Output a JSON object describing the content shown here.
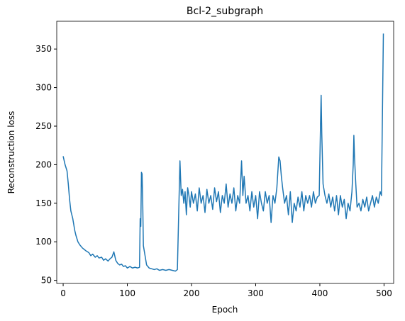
{
  "chart_data": {
    "type": "line",
    "title": "Bcl-2_subgraph",
    "xlabel": "Epoch",
    "ylabel": "Reconstruction loss",
    "x": [
      0,
      3,
      6,
      8,
      10,
      12,
      15,
      18,
      20,
      23,
      26,
      30,
      33,
      36,
      40,
      43,
      46,
      50,
      53,
      56,
      60,
      63,
      66,
      70,
      73,
      76,
      79,
      82,
      85,
      88,
      91,
      94,
      97,
      100,
      104,
      108,
      112,
      116,
      119,
      120,
      121,
      122,
      123,
      124,
      125,
      127,
      130,
      134,
      138,
      142,
      146,
      150,
      155,
      160,
      165,
      170,
      175,
      178,
      180,
      182,
      184,
      186,
      188,
      190,
      192,
      194,
      196,
      198,
      200,
      203,
      206,
      209,
      212,
      215,
      218,
      221,
      224,
      227,
      230,
      233,
      236,
      239,
      242,
      245,
      248,
      251,
      254,
      257,
      260,
      263,
      266,
      269,
      272,
      275,
      278,
      280,
      282,
      285,
      288,
      291,
      294,
      297,
      300,
      303,
      306,
      309,
      312,
      315,
      318,
      321,
      324,
      327,
      330,
      333,
      336,
      338,
      340,
      342,
      345,
      348,
      351,
      354,
      357,
      360,
      363,
      366,
      369,
      372,
      375,
      378,
      381,
      384,
      387,
      390,
      393,
      396,
      399,
      401,
      402,
      403,
      405,
      408,
      411,
      414,
      417,
      420,
      423,
      426,
      429,
      432,
      435,
      438,
      441,
      444,
      447,
      450,
      452,
      453,
      454,
      456,
      458,
      461,
      464,
      467,
      470,
      473,
      476,
      479,
      482,
      485,
      488,
      491,
      494,
      496,
      499
    ],
    "values": [
      211,
      200,
      192,
      175,
      155,
      140,
      130,
      115,
      108,
      100,
      96,
      92,
      90,
      88,
      86,
      82,
      84,
      80,
      82,
      79,
      80,
      76,
      78,
      75,
      78,
      80,
      87,
      76,
      72,
      70,
      71,
      68,
      69,
      66,
      68,
      66,
      67,
      66,
      67,
      130,
      120,
      190,
      188,
      150,
      95,
      85,
      70,
      66,
      65,
      64,
      65,
      63,
      64,
      63,
      64,
      63,
      62,
      64,
      135,
      205,
      160,
      168,
      150,
      165,
      135,
      170,
      160,
      145,
      165,
      150,
      162,
      140,
      170,
      150,
      160,
      138,
      168,
      150,
      160,
      142,
      170,
      152,
      165,
      138,
      160,
      150,
      175,
      145,
      162,
      150,
      170,
      140,
      160,
      150,
      205,
      160,
      185,
      150,
      160,
      140,
      165,
      145,
      160,
      130,
      165,
      150,
      140,
      165,
      150,
      160,
      125,
      160,
      150,
      170,
      210,
      205,
      185,
      170,
      150,
      160,
      135,
      165,
      125,
      150,
      140,
      158,
      145,
      165,
      140,
      160,
      150,
      160,
      145,
      165,
      150,
      158,
      160,
      250,
      290,
      240,
      175,
      160,
      150,
      162,
      145,
      158,
      140,
      160,
      135,
      160,
      145,
      155,
      130,
      150,
      140,
      165,
      200,
      238,
      210,
      175,
      145,
      150,
      140,
      155,
      145,
      158,
      140,
      150,
      160,
      145,
      158,
      150,
      165,
      160,
      370
    ],
    "color": "#1f77b4",
    "xlim": [
      -10,
      515
    ],
    "ylim": [
      46,
      386
    ],
    "xticks": [
      0,
      100,
      200,
      300,
      400,
      500
    ],
    "yticks": [
      50,
      100,
      150,
      200,
      250,
      300,
      350
    ]
  }
}
